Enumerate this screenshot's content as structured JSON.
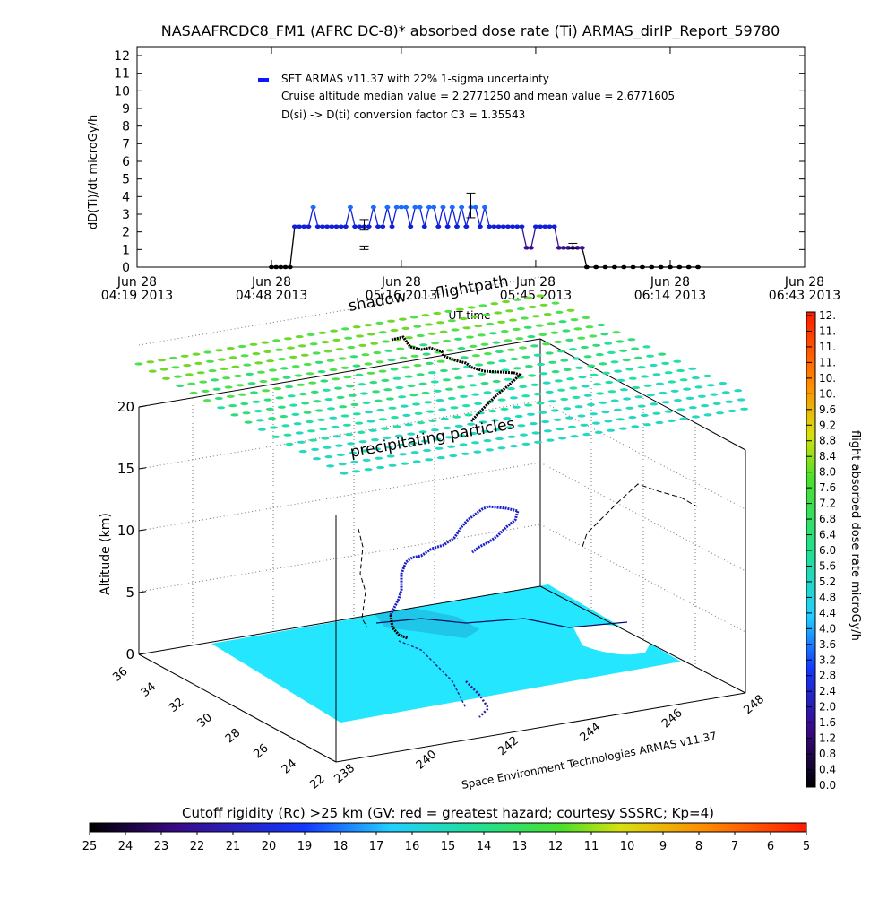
{
  "title": "NASAAFRCDC8_FM1 (AFRC DC-8)* absorbed dose rate (Ti) ARMAS_dirIP_Report_59780",
  "chart_data": [
    {
      "type": "line",
      "ylabel": "dD(Ti)/dt microGy/h",
      "xlabel": "UT time",
      "ylim": [
        0,
        12
      ],
      "yticks": [
        "0",
        "1",
        "2",
        "3",
        "4",
        "5",
        "6",
        "7",
        "8",
        "9",
        "10",
        "11",
        "12"
      ],
      "xlim": [
        "04:19",
        "06:43"
      ],
      "xticks": [
        {
          "t": "04:19",
          "line1": "Jun 28",
          "line2": "04:19 2013"
        },
        {
          "t": "04:48",
          "line1": "Jun 28",
          "line2": "04:48 2013"
        },
        {
          "t": "05:16",
          "line1": "Jun 28",
          "line2": "05:16 2013"
        },
        {
          "t": "05:45",
          "line1": "Jun 28",
          "line2": "05:45 2013"
        },
        {
          "t": "06:14",
          "line1": "Jun 28",
          "line2": "06:14 2013"
        },
        {
          "t": "06:43",
          "line1": "Jun 28",
          "line2": "06:43 2013"
        }
      ],
      "legend": {
        "placement": "top-left",
        "series_label": "SET ARMAS v11.37 with 22% 1-sigma uncertainty",
        "line2": "Cruise altitude median value = 2.2771250 and mean value = 2.6771605",
        "line3": "D(si) -> D(ti) conversion factor C3 = 1.35543",
        "marker_color": "#0a18ff"
      },
      "series": [
        {
          "name": "SET ARMAS v11.37 with 22% 1-sigma uncertainty",
          "points": [
            [
              "04:48",
              0
            ],
            [
              "04:49",
              0
            ],
            [
              "04:50",
              0
            ],
            [
              "04:51",
              0
            ],
            [
              "04:52",
              0
            ],
            [
              "04:53",
              2.3
            ],
            [
              "04:54",
              2.3
            ],
            [
              "04:55",
              2.3
            ],
            [
              "04:56",
              2.3
            ],
            [
              "04:57",
              3.4
            ],
            [
              "04:58",
              2.3
            ],
            [
              "04:59",
              2.3
            ],
            [
              "05:00",
              2.3
            ],
            [
              "05:01",
              2.3
            ],
            [
              "05:02",
              2.3
            ],
            [
              "05:03",
              2.3
            ],
            [
              "05:04",
              2.3
            ],
            [
              "05:05",
              3.4
            ],
            [
              "05:06",
              2.3
            ],
            [
              "05:07",
              2.3
            ],
            [
              "05:08",
              2.3
            ],
            [
              "05:09",
              2.3
            ],
            [
              "05:10",
              3.4
            ],
            [
              "05:11",
              2.3
            ],
            [
              "05:12",
              2.3
            ],
            [
              "05:13",
              3.4
            ],
            [
              "05:14",
              2.3
            ],
            [
              "05:15",
              3.4
            ],
            [
              "05:16",
              3.4
            ],
            [
              "05:17",
              3.4
            ],
            [
              "05:18",
              2.3
            ],
            [
              "05:19",
              3.4
            ],
            [
              "05:20",
              3.4
            ],
            [
              "05:21",
              2.3
            ],
            [
              "05:22",
              3.4
            ],
            [
              "05:23",
              3.4
            ],
            [
              "05:24",
              2.3
            ],
            [
              "05:25",
              3.4
            ],
            [
              "05:26",
              2.3
            ],
            [
              "05:27",
              3.4
            ],
            [
              "05:28",
              2.3
            ],
            [
              "05:29",
              3.4
            ],
            [
              "05:30",
              2.3
            ],
            [
              "05:31",
              3.4
            ],
            [
              "05:32",
              3.4
            ],
            [
              "05:33",
              2.3
            ],
            [
              "05:34",
              3.4
            ],
            [
              "05:35",
              2.3
            ],
            [
              "05:36",
              2.3
            ],
            [
              "05:37",
              2.3
            ],
            [
              "05:38",
              2.3
            ],
            [
              "05:39",
              2.3
            ],
            [
              "05:40",
              2.3
            ],
            [
              "05:41",
              2.3
            ],
            [
              "05:42",
              2.3
            ],
            [
              "05:43",
              1.1
            ],
            [
              "05:44",
              1.1
            ],
            [
              "05:45",
              2.3
            ],
            [
              "05:46",
              2.3
            ],
            [
              "05:47",
              2.3
            ],
            [
              "05:48",
              2.3
            ],
            [
              "05:49",
              2.3
            ],
            [
              "05:50",
              1.1
            ],
            [
              "05:51",
              1.1
            ],
            [
              "05:52",
              1.1
            ],
            [
              "05:53",
              1.1
            ],
            [
              "05:54",
              1.1
            ],
            [
              "05:55",
              1.1
            ],
            [
              "05:56",
              0
            ],
            [
              "05:58",
              0
            ],
            [
              "06:00",
              0
            ],
            [
              "06:02",
              0
            ],
            [
              "06:04",
              0
            ],
            [
              "06:06",
              0
            ],
            [
              "06:08",
              0
            ],
            [
              "06:10",
              0
            ],
            [
              "06:12",
              0
            ],
            [
              "06:14",
              0
            ],
            [
              "06:16",
              0
            ],
            [
              "06:18",
              0
            ],
            [
              "06:20",
              0
            ]
          ]
        }
      ],
      "error_bars": [
        {
          "t": "05:08",
          "y": 1.1,
          "lo": 1.0,
          "hi": 1.2
        },
        {
          "t": "05:08",
          "y": 2.4,
          "lo": 2.1,
          "hi": 2.7
        },
        {
          "t": "05:31",
          "y": 3.5,
          "lo": 2.8,
          "hi": 4.2
        },
        {
          "t": "05:53",
          "y": 1.2,
          "lo": 1.05,
          "hi": 1.35
        }
      ]
    },
    {
      "type": "scatter",
      "title_annotations": [
        "shadow",
        "flightpath",
        "precipitating particles"
      ],
      "ylabel": "Altitude (km)",
      "zticks": [
        "0",
        "5",
        "10",
        "15",
        "20"
      ],
      "lat_ticks": [
        "22",
        "24",
        "26",
        "28",
        "30",
        "32",
        "34",
        "36"
      ],
      "lon_ticks": [
        "238",
        "240",
        "242",
        "244",
        "246",
        "248"
      ],
      "credit": "Space Environment Technologies ARMAS v11.37",
      "colorbar": {
        "label": "flight absorbed dose rate microGy/h",
        "ticks": [
          "0.0",
          "0.4",
          "0.8",
          "1.2",
          "1.6",
          "2.0",
          "2.4",
          "2.8",
          "3.2",
          "3.6",
          "4.0",
          "4.4",
          "4.8",
          "5.2",
          "5.6",
          "6.0",
          "6.4",
          "6.8",
          "7.2",
          "7.6",
          "8.0",
          "8.4",
          "8.8",
          "9.2",
          "9.6",
          "10.",
          "10.",
          "11.",
          "11.",
          "11.",
          "12."
        ]
      },
      "rigidity_bar": {
        "label": "Cutoff rigidity (Rc) >25 km (GV: red = greatest hazard; courtesy SSSRC; Kp=4)",
        "ticks": [
          "25",
          "24",
          "23",
          "22",
          "21",
          "20",
          "19",
          "18",
          "17",
          "16",
          "15",
          "14",
          "13",
          "12",
          "11",
          "10",
          "9",
          "8",
          "7",
          "6",
          "5"
        ]
      },
      "flight_track_deg": [
        [
          239.8,
          31.4
        ],
        [
          240.0,
          31.9
        ],
        [
          240.2,
          32.5
        ],
        [
          240.6,
          33.1
        ],
        [
          241.0,
          33.6
        ],
        [
          241.6,
          33.9
        ],
        [
          242.2,
          34.2
        ],
        [
          242.8,
          34.6
        ],
        [
          243.4,
          35.0
        ],
        [
          243.8,
          35.4
        ],
        [
          243.3,
          35.6
        ],
        [
          242.6,
          35.4
        ],
        [
          242.0,
          35.1
        ],
        [
          241.4,
          34.8
        ],
        [
          240.9,
          34.5
        ]
      ]
    }
  ]
}
